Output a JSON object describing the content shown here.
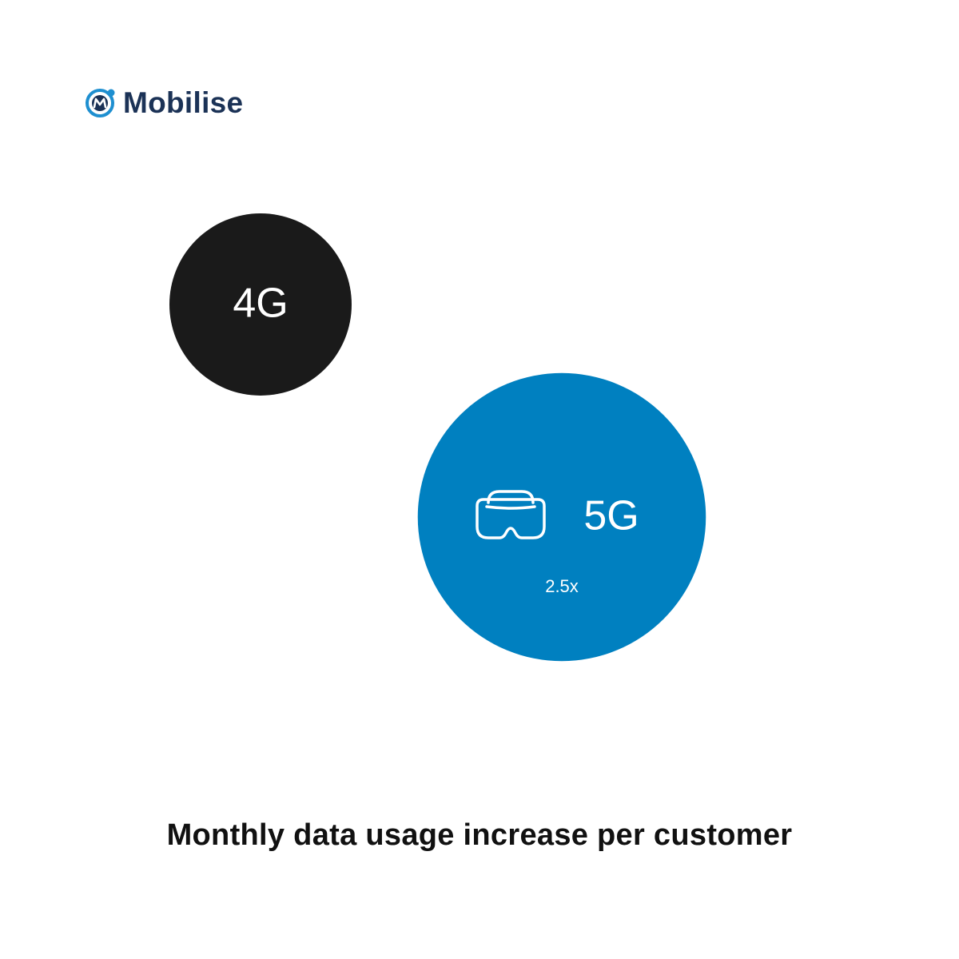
{
  "brand": {
    "name": "Mobilise",
    "logo_icon": "mobilise-logo-icon",
    "color": "#1b3256",
    "accent": "#1e8fd0"
  },
  "caption": "Monthly data usage increase per customer",
  "chart_data": {
    "type": "bubble",
    "title": "Monthly data usage increase per customer",
    "items": [
      {
        "label": "4G",
        "value": 1,
        "color": "#1a1a1a",
        "icon": null,
        "value_label": ""
      },
      {
        "label": "5G",
        "value": 2.5,
        "color": "#0080c0",
        "icon": "vr-headset-icon",
        "value_label": "2.5x"
      }
    ]
  }
}
